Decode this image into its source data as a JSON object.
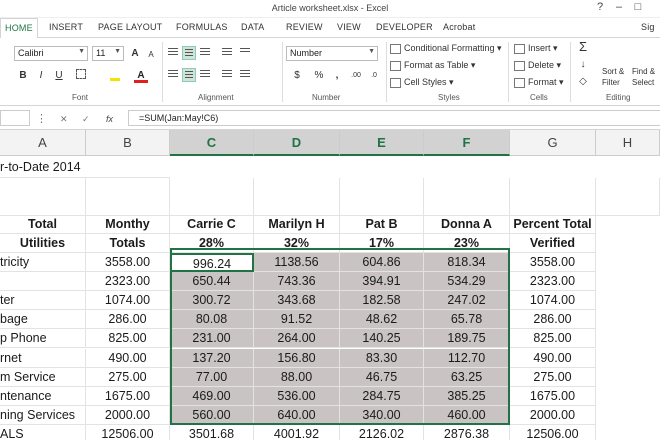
{
  "window": {
    "title": "Article worksheet.xlsx - Excel",
    "help": "?",
    "minimize": "–",
    "restore": "□"
  },
  "tabs": [
    "HOME",
    "INSERT",
    "PAGE LAYOUT",
    "FORMULAS",
    "DATA",
    "REVIEW",
    "VIEW",
    "DEVELOPER",
    "Acrobat",
    "Sig"
  ],
  "ribbon": {
    "font_name": "Calibri",
    "font_size": "11",
    "bold": "B",
    "italic": "I",
    "underline": "U",
    "grow_font": "A",
    "shrink_font": "A",
    "number_format": "Number",
    "currency": "$",
    "percent": "%",
    "comma": ",",
    "inc_decimal": ".00",
    "dec_decimal": ".0",
    "cond_formatting": "Conditional Formatting",
    "format_as_table": "Format as Table",
    "cell_styles": "Cell Styles",
    "insert": "Insert",
    "delete": "Delete",
    "format": "Format",
    "autosum": "Σ",
    "fill": "↓",
    "clear": "◇",
    "sort_filter_1": "Sort &",
    "sort_filter_2": "Filter",
    "find_select_1": "Find &",
    "find_select_2": "Select",
    "groups": {
      "font": "Font",
      "alignment": "Alignment",
      "number": "Number",
      "styles": "Styles",
      "cells": "Cells",
      "editing": "Editing"
    },
    "colors": {
      "fill": "#f5e200",
      "font_color": "#e02020"
    }
  },
  "formula_bar": {
    "fx": "fx",
    "formula": "=SUM(Jan:May!C6)"
  },
  "columns": [
    "A",
    "B",
    "C",
    "D",
    "E",
    "F",
    "G",
    "H"
  ],
  "sheet": {
    "a1": "r-to-Date 2014",
    "headers_row1": [
      "Total",
      "Monthy",
      "Carrie C",
      "Marilyn H",
      "Pat B",
      "Donna A",
      "Percent Total"
    ],
    "headers_row2": [
      "Utilities",
      "Totals",
      "28%",
      "32%",
      "17%",
      "23%",
      "Verified"
    ],
    "rows": [
      {
        "label": "tricity",
        "b": "3558.00",
        "c": "996.24",
        "d": "1138.56",
        "e": "604.86",
        "f": "818.34",
        "g": "3558.00"
      },
      {
        "label": "",
        "b": "2323.00",
        "c": "650.44",
        "d": "743.36",
        "e": "394.91",
        "f": "534.29",
        "g": "2323.00"
      },
      {
        "label": "ter",
        "b": "1074.00",
        "c": "300.72",
        "d": "343.68",
        "e": "182.58",
        "f": "247.02",
        "g": "1074.00"
      },
      {
        "label": "bage",
        "b": "286.00",
        "c": "80.08",
        "d": "91.52",
        "e": "48.62",
        "f": "65.78",
        "g": "286.00"
      },
      {
        "label": "p Phone",
        "b": "825.00",
        "c": "231.00",
        "d": "264.00",
        "e": "140.25",
        "f": "189.75",
        "g": "825.00"
      },
      {
        "label": "rnet",
        "b": "490.00",
        "c": "137.20",
        "d": "156.80",
        "e": "83.30",
        "f": "112.70",
        "g": "490.00"
      },
      {
        "label": "m Service",
        "b": "275.00",
        "c": "77.00",
        "d": "88.00",
        "e": "46.75",
        "f": "63.25",
        "g": "275.00"
      },
      {
        "label": "ntenance",
        "b": "1675.00",
        "c": "469.00",
        "d": "536.00",
        "e": "284.75",
        "f": "385.25",
        "g": "1675.00"
      },
      {
        "label": "ning Services",
        "b": "2000.00",
        "c": "560.00",
        "d": "640.00",
        "e": "340.00",
        "f": "460.00",
        "g": "2000.00"
      },
      {
        "label": "ALS",
        "b": "12506.00",
        "c": "3501.68",
        "d": "4001.92",
        "e": "2126.02",
        "f": "2876.38",
        "g": "12506.00"
      }
    ]
  }
}
